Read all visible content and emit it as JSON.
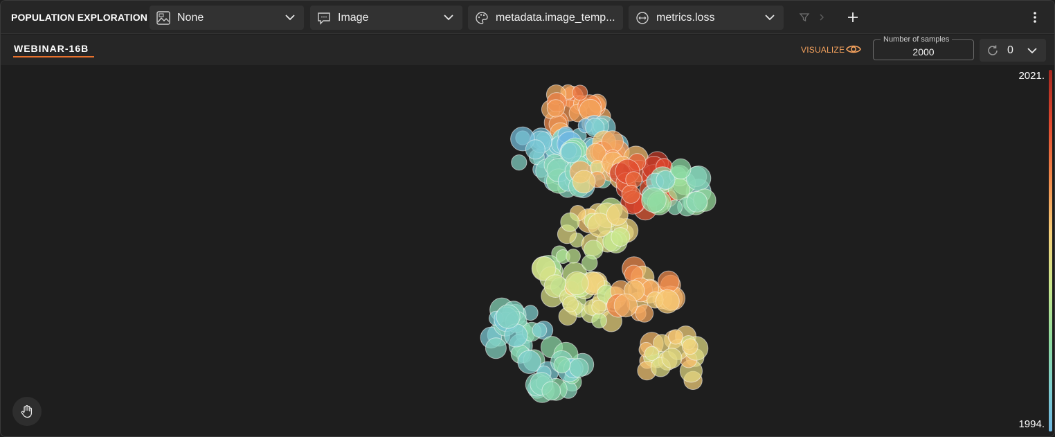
{
  "app": {
    "title": "POPULATION EXPLORATION"
  },
  "toolbar": {
    "dropdowns": [
      {
        "icon": "image-preview-icon",
        "label": "None"
      },
      {
        "icon": "tooltip-icon",
        "label": "Image"
      },
      {
        "icon": "palette-icon",
        "label": "metadata.image_temp..."
      },
      {
        "icon": "size-icon",
        "label": "metrics.loss"
      }
    ],
    "icons": [
      "filter-icon",
      "chevron-right-icon",
      "plus-icon",
      "more-vertical-icon"
    ]
  },
  "subbar": {
    "active_tab": "WEBINAR-16B",
    "visualize_label": "VISUALIZE",
    "samples_legend": "Number of samples",
    "samples_value": "2000",
    "refresh_value": "0"
  },
  "colors": {
    "accent": "#e8712d",
    "visualize": "#f5a25d",
    "scale": [
      "#6fb6e0",
      "#7fcfd0",
      "#8fdca0",
      "#c9e88e",
      "#f6d07a",
      "#f28a4b",
      "#e24a2f",
      "#a4271f"
    ]
  },
  "chart_data": {
    "type": "scatter",
    "title": "",
    "xlabel": "",
    "ylabel": "",
    "color_scale": {
      "min_label": "1994.",
      "max_label": "2021.",
      "colormap": "spectral"
    },
    "clusters": [
      {
        "x": 0.5,
        "y": 0.1,
        "value": 0.7
      },
      {
        "x": 0.42,
        "y": 0.22,
        "value": 0.1
      },
      {
        "x": 0.55,
        "y": 0.2,
        "value": 0.08
      },
      {
        "x": 0.52,
        "y": 0.27,
        "value": 0.2
      },
      {
        "x": 0.6,
        "y": 0.25,
        "value": 0.65
      },
      {
        "x": 0.7,
        "y": 0.3,
        "value": 0.85
      },
      {
        "x": 0.8,
        "y": 0.33,
        "value": 0.25
      },
      {
        "x": 0.57,
        "y": 0.43,
        "value": 0.5
      },
      {
        "x": 0.5,
        "y": 0.57,
        "value": 0.4
      },
      {
        "x": 0.55,
        "y": 0.65,
        "value": 0.5
      },
      {
        "x": 0.7,
        "y": 0.62,
        "value": 0.65
      },
      {
        "x": 0.35,
        "y": 0.73,
        "value": 0.15
      },
      {
        "x": 0.45,
        "y": 0.85,
        "value": 0.2
      },
      {
        "x": 0.78,
        "y": 0.82,
        "value": 0.55
      }
    ]
  }
}
